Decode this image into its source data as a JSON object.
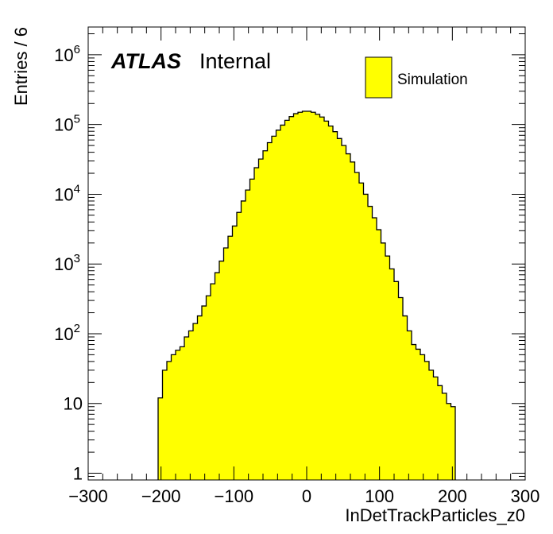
{
  "chart_data": {
    "type": "bar",
    "style": "histogram",
    "xlabel": "InDetTrackParticles_z0",
    "ylabel": "Entries / 6",
    "xlim": [
      -300,
      300
    ],
    "ylim": [
      0.8,
      2500000
    ],
    "y_scale": "log",
    "grid": false,
    "x_ticks": [
      "−300",
      "−200",
      "−100",
      "0",
      "100",
      "200",
      "300"
    ],
    "y_ticks": [
      {
        "base": "1",
        "exp": ""
      },
      {
        "base": "10",
        "exp": ""
      },
      {
        "base": "10",
        "exp": "2"
      },
      {
        "base": "10",
        "exp": "3"
      },
      {
        "base": "10",
        "exp": "4"
      },
      {
        "base": "10",
        "exp": "5"
      },
      {
        "base": "10",
        "exp": "6"
      }
    ],
    "bin_width": 6,
    "x": [
      -201,
      -195,
      -189,
      -183,
      -177,
      -171,
      -165,
      -159,
      -153,
      -147,
      -141,
      -135,
      -129,
      -123,
      -117,
      -111,
      -105,
      -99,
      -93,
      -87,
      -81,
      -75,
      -69,
      -63,
      -57,
      -51,
      -45,
      -39,
      -33,
      -27,
      -21,
      -15,
      -9,
      -3,
      3,
      9,
      15,
      21,
      27,
      33,
      39,
      45,
      51,
      57,
      63,
      69,
      75,
      81,
      87,
      93,
      99,
      105,
      111,
      117,
      123,
      129,
      135,
      141,
      147,
      153,
      159,
      165,
      171,
      177,
      183,
      189,
      195,
      201
    ],
    "values": [
      12,
      30,
      40,
      50,
      58,
      65,
      90,
      110,
      140,
      180,
      250,
      350,
      520,
      750,
      1100,
      1700,
      2500,
      3500,
      5500,
      8000,
      11500,
      16500,
      24000,
      32000,
      42000,
      55000,
      68000,
      83000,
      98000,
      115000,
      130000,
      143000,
      150000,
      155000,
      155000,
      150000,
      140000,
      128000,
      112000,
      95000,
      79000,
      63000,
      50000,
      38000,
      29000,
      20500,
      14500,
      10000,
      6700,
      4600,
      3100,
      2000,
      1300,
      850,
      560,
      330,
      180,
      110,
      70,
      60,
      50,
      40,
      30,
      24,
      18,
      14,
      10,
      9
    ],
    "legend": {
      "entries": [
        {
          "label": "Simulation",
          "color": "#ffff00"
        }
      ],
      "placement": "top-right"
    },
    "annotations": {
      "experiment": "ATLAS",
      "status": "Internal"
    },
    "colors": {
      "fill": "#ffff00",
      "line": "#000000"
    }
  }
}
